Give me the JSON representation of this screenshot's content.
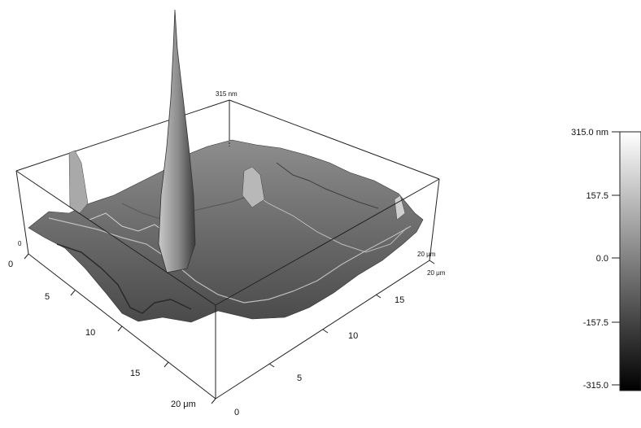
{
  "afm_image": {
    "z_max_label": "315 nm",
    "axes": {
      "front_x_ticks": [
        {
          "value": "0"
        },
        {
          "value": "5"
        },
        {
          "value": "10"
        },
        {
          "value": "15"
        },
        {
          "value": "20 μm"
        }
      ],
      "right_y_ticks": [
        {
          "value": "0"
        },
        {
          "value": "5"
        },
        {
          "value": "10"
        },
        {
          "value": "15"
        },
        {
          "value": "20 μm"
        }
      ],
      "back_label": "20 μm",
      "left_zero": "0"
    }
  },
  "colorbar": {
    "ticks": [
      {
        "label": "315.0 nm",
        "value": 315.0
      },
      {
        "label": "157.5",
        "value": 157.5
      },
      {
        "label": "0.0",
        "value": 0.0
      },
      {
        "label": "-157.5",
        "value": -157.5
      },
      {
        "label": "-315.0",
        "value": -315.0
      }
    ],
    "range": [
      -315.0,
      315.0
    ],
    "gradient": [
      "#000000",
      "#ffffff"
    ]
  }
}
